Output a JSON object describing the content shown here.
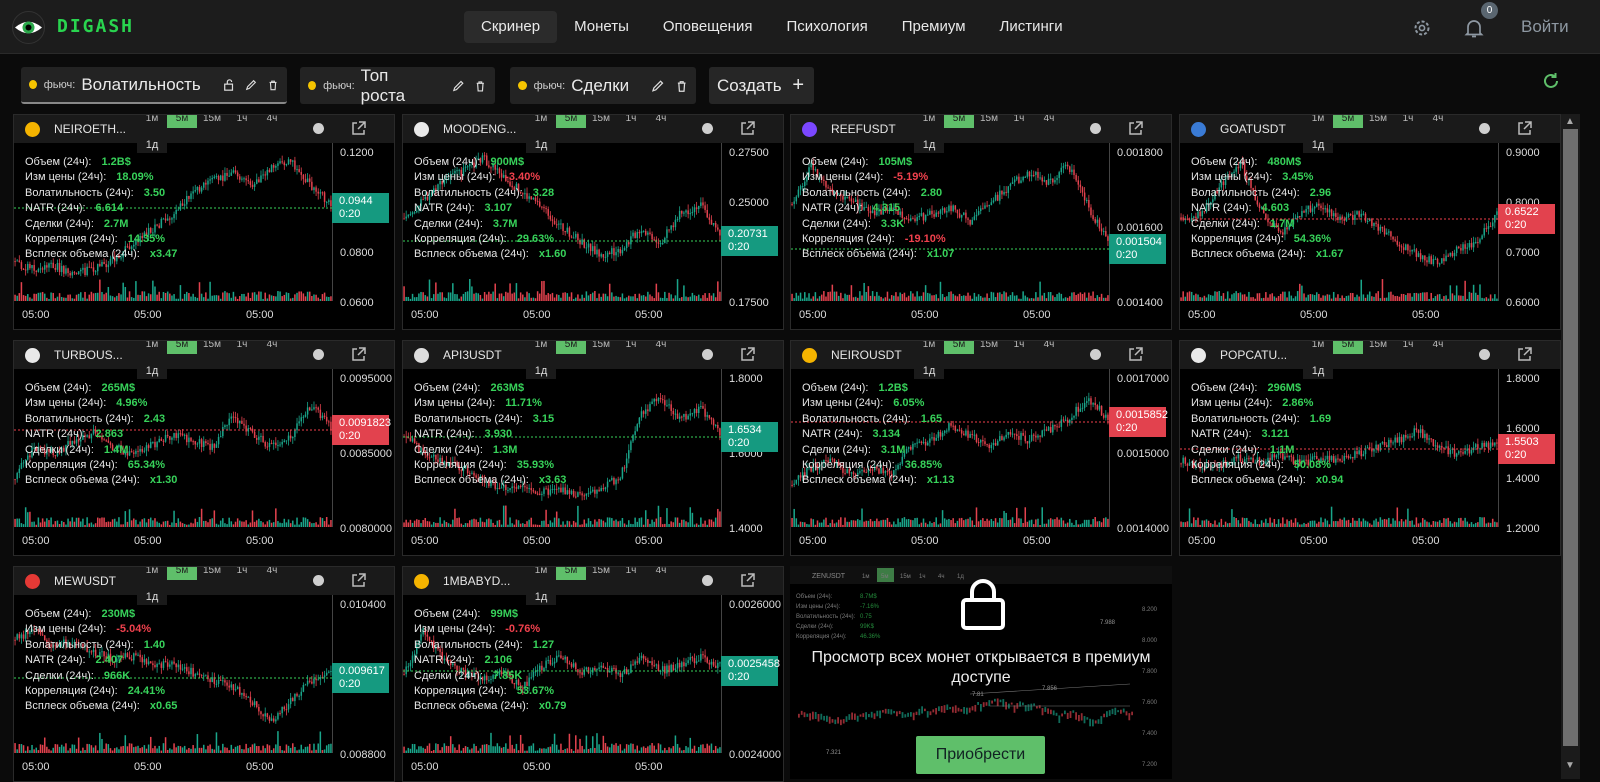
{
  "app": {
    "brand": "DIGASH",
    "login": "Войти",
    "notifications": "0"
  },
  "nav": [
    "Скринер",
    "Монеты",
    "Оповещения",
    "Психология",
    "Премиум",
    "Листинги"
  ],
  "tabs": [
    {
      "prefix": "фьюч:",
      "name": "Волатильность"
    },
    {
      "prefix": "фьюч:",
      "name": "Топ роста"
    },
    {
      "prefix": "фьюч:",
      "name": "Сделки"
    }
  ],
  "create_label": "Создать",
  "timeframes": [
    "1м",
    "5м",
    "15м",
    "1ч",
    "4ч"
  ],
  "timeframe_day": "1д",
  "stat_labels": [
    "Объем (24ч):",
    "Изм цены (24ч):",
    "Волатильность (24ч):",
    "NATR (24ч):",
    "Сделки (24ч):",
    "Корреляция (24ч):",
    "Всплеск объема (24ч):"
  ],
  "colors": {
    "green": "#37d25a",
    "red": "#f0414d",
    "up_candle": "#1aa58a",
    "down_candle": "#e2424e",
    "accent": "#5fbf6a"
  },
  "panels": [
    {
      "symbol": "NEIROETH...",
      "icon": "coin-icon",
      "icon_color": "#f5b400",
      "stats": [
        "1.2B$",
        "18.09%",
        "3.50",
        "6.614",
        "2.7M",
        "14.35%",
        "x3.47"
      ],
      "neg": [
        false,
        false,
        false,
        false,
        false,
        false,
        false
      ],
      "yticks": [
        "0.1200",
        "0.1000",
        "0.0800",
        "0.0600"
      ],
      "price": "0.0944",
      "timer": "0:20",
      "price_up": true,
      "xticks": [
        "05:00",
        "05:00",
        "05:00"
      ],
      "trend": [
        0.2,
        0.15,
        0.18,
        0.12,
        0.16,
        0.22,
        0.35,
        0.45,
        0.55,
        0.7,
        0.78,
        0.85,
        0.75,
        0.88,
        0.92,
        0.75,
        0.62
      ]
    },
    {
      "symbol": "MOODENG...",
      "icon": "moodeng-icon",
      "icon_color": "#e9e9e9",
      "stats": [
        "900M$",
        "-3.40%",
        "3.28",
        "3.107",
        "3.7M",
        "29.63%",
        "x1.60"
      ],
      "neg": [
        false,
        true,
        false,
        false,
        false,
        false,
        false
      ],
      "yticks": [
        "0.27500",
        "0.25000",
        "0.22500",
        "0.17500"
      ],
      "price": "0.20731",
      "timer": "0:20",
      "price_up": true,
      "xticks": [
        "05:00",
        "05:00",
        "05:00"
      ],
      "trend": [
        0.5,
        0.65,
        0.8,
        0.85,
        0.95,
        0.82,
        0.7,
        0.6,
        0.45,
        0.35,
        0.25,
        0.3,
        0.45,
        0.35,
        0.55,
        0.62,
        0.4
      ]
    },
    {
      "symbol": "REEFUSDT",
      "icon": "reef-icon",
      "icon_color": "#7b47ff",
      "stats": [
        "105M$",
        "-5.19%",
        "2.80",
        "4.315",
        "3.3K",
        "-19.10%",
        "x1.07"
      ],
      "neg": [
        false,
        true,
        false,
        false,
        false,
        true,
        false
      ],
      "yticks": [
        "0.001800",
        "0.001600",
        "0.001400"
      ],
      "price": "0.001504",
      "timer": "0:20",
      "price_up": true,
      "xticks": [
        "05:00",
        "05:00",
        "05:00"
      ],
      "trend": [
        0.6,
        0.9,
        0.7,
        0.65,
        0.55,
        0.6,
        0.5,
        0.55,
        0.6,
        0.5,
        0.62,
        0.75,
        0.85,
        0.78,
        0.9,
        0.6,
        0.35
      ]
    },
    {
      "symbol": "GOATUSDT",
      "icon": "goat-icon",
      "icon_color": "#3a7bd5",
      "stats": [
        "480M$",
        "3.45%",
        "2.96",
        "4.603",
        "1.7M",
        "54.36%",
        "x1.67"
      ],
      "neg": [
        false,
        false,
        false,
        false,
        false,
        false,
        false
      ],
      "yticks": [
        "0.9000",
        "0.8000",
        "0.7000",
        "0.6000"
      ],
      "price": "0.6522",
      "timer": "0:20",
      "price_up": false,
      "xticks": [
        "05:00",
        "05:00",
        "05:00"
      ],
      "trend": [
        0.5,
        0.55,
        0.75,
        0.92,
        0.6,
        0.4,
        0.55,
        0.62,
        0.5,
        0.55,
        0.45,
        0.35,
        0.25,
        0.2,
        0.3,
        0.35,
        0.55
      ]
    },
    {
      "symbol": "TURBOUS...",
      "icon": "turbo-icon",
      "icon_color": "#e9e9e9",
      "stats": [
        "265M$",
        "4.96%",
        "2.43",
        "2.863",
        "1.4M",
        "65.34%",
        "x1.30"
      ],
      "neg": [
        false,
        false,
        false,
        false,
        false,
        false,
        false
      ],
      "yticks": [
        "0.0095000",
        "0.0085000",
        "0.0080000"
      ],
      "price": "0.0091823",
      "timer": "0:20",
      "price_up": false,
      "xticks": [
        "05:00",
        "05:00",
        "05:00"
      ],
      "trend": [
        0.3,
        0.5,
        0.45,
        0.55,
        0.6,
        0.5,
        0.45,
        0.52,
        0.58,
        0.55,
        0.5,
        0.72,
        0.6,
        0.5,
        0.58,
        0.8,
        0.65
      ]
    },
    {
      "symbol": "API3USDT",
      "icon": "api3-icon",
      "icon_color": "#dddddd",
      "stats": [
        "263M$",
        "11.71%",
        "3.15",
        "3.930",
        "1.3M",
        "35.93%",
        "x3.63"
      ],
      "neg": [
        false,
        false,
        false,
        false,
        false,
        false,
        false
      ],
      "yticks": [
        "1.8000",
        "1.6000",
        "1.4000"
      ],
      "price": "1.6534",
      "timer": "0:20",
      "price_up": true,
      "xticks": [
        "05:00",
        "05:00",
        "05:00"
      ],
      "trend": [
        0.6,
        0.45,
        0.4,
        0.35,
        0.25,
        0.22,
        0.2,
        0.18,
        0.2,
        0.15,
        0.2,
        0.3,
        0.75,
        0.85,
        0.7,
        0.78,
        0.6
      ]
    },
    {
      "symbol": "NEIROUSDT",
      "icon": "neiro-icon",
      "icon_color": "#f5b400",
      "stats": [
        "1.2B$",
        "6.05%",
        "1.65",
        "3.134",
        "3.1M",
        "36.85%",
        "x1.13"
      ],
      "neg": [
        false,
        false,
        false,
        false,
        false,
        false,
        false
      ],
      "yticks": [
        "0.0017000",
        "0.0015000",
        "0.0014000"
      ],
      "price": "0.0015852",
      "timer": "0:20",
      "price_up": false,
      "xticks": [
        "05:00",
        "05:00",
        "05:00"
      ],
      "trend": [
        0.25,
        0.35,
        0.4,
        0.3,
        0.35,
        0.3,
        0.5,
        0.55,
        0.65,
        0.58,
        0.5,
        0.6,
        0.55,
        0.62,
        0.7,
        0.85,
        0.7
      ]
    },
    {
      "symbol": "POPCATU...",
      "icon": "popcat-icon",
      "icon_color": "#e9e9e9",
      "stats": [
        "296M$",
        "2.86%",
        "1.69",
        "3.121",
        "1.1M",
        "50.08%",
        "x0.94"
      ],
      "neg": [
        false,
        false,
        false,
        false,
        false,
        false,
        false
      ],
      "yticks": [
        "1.8000",
        "1.6000",
        "1.4000",
        "1.2000"
      ],
      "price": "1.5503",
      "timer": "0:20",
      "price_up": false,
      "xticks": [
        "05:00",
        "05:00",
        "05:00"
      ],
      "trend": [
        0.4,
        0.35,
        0.38,
        0.42,
        0.4,
        0.45,
        0.38,
        0.42,
        0.4,
        0.45,
        0.5,
        0.55,
        0.62,
        0.5,
        0.45,
        0.5,
        0.52
      ]
    },
    {
      "symbol": "MEWUSDT",
      "icon": "mew-icon",
      "icon_color": "#e53935",
      "stats": [
        "230M$",
        "-5.04%",
        "1.40",
        "2.407",
        "966K",
        "24.41%",
        "x0.65"
      ],
      "neg": [
        false,
        true,
        false,
        false,
        false,
        false,
        false
      ],
      "yticks": [
        "0.010400",
        "0.008800"
      ],
      "price": "0.009617",
      "timer": "0:20",
      "price_up": true,
      "xticks": [
        "05:00",
        "05:00",
        "05:00"
      ],
      "trend": [
        0.75,
        0.8,
        0.7,
        0.72,
        0.65,
        0.6,
        0.62,
        0.55,
        0.58,
        0.5,
        0.45,
        0.4,
        0.3,
        0.15,
        0.3,
        0.45,
        0.5
      ]
    },
    {
      "symbol": "1MBABYD...",
      "icon": "babydoge-icon",
      "icon_color": "#f5b400",
      "stats": [
        "99M$",
        "-0.76%",
        "1.27",
        "2.106",
        "7.85K",
        "53.67%",
        "x0.79"
      ],
      "neg": [
        false,
        true,
        false,
        false,
        false,
        false,
        false
      ],
      "yticks": [
        "0.0026000",
        "0.0024000"
      ],
      "price": "0.0025458",
      "timer": "0:20",
      "price_up": true,
      "xticks": [
        "05:00",
        "05:00",
        "05:00"
      ],
      "trend": [
        0.5,
        0.8,
        0.6,
        0.5,
        0.45,
        0.5,
        0.4,
        0.55,
        0.62,
        0.5,
        0.55,
        0.48,
        0.6,
        0.52,
        0.55,
        0.62,
        0.55
      ]
    }
  ],
  "locked": {
    "message": "Просмотр всех монет открывается в премиум доступе",
    "button": "Приобрести",
    "symbol": "ZENUSDT",
    "stats": [
      "8.7M$",
      "-7.16%",
      "0.75",
      "99K$",
      "46.36%"
    ],
    "stat_labels": [
      "Объем (24ч):",
      "Изм цены (24ч):",
      "Волатильность (24ч):",
      "Сделки (24ч):",
      "Корреляция (24ч):"
    ],
    "timeframes": [
      "1м",
      "5м",
      "15м",
      "1ч",
      "4ч",
      "1д"
    ],
    "yticks": [
      "8.200",
      "8.000",
      "7.800",
      "7.600",
      "7.400",
      "7.200"
    ],
    "labels": [
      "7.988",
      "7.856",
      "7.81",
      "7.321"
    ]
  }
}
